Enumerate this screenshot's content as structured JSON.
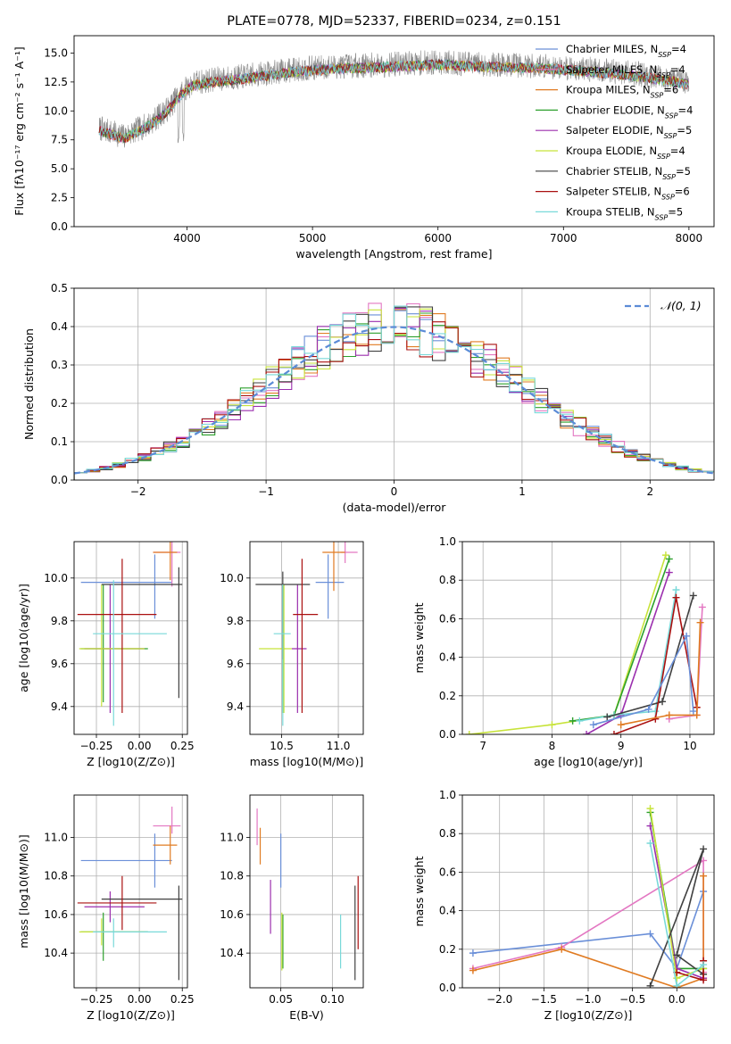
{
  "chart_data": [
    {
      "id": "spectrum",
      "type": "line",
      "title": "PLATE=0778, MJD=52337, FIBERID=0234, z=0.151",
      "xlabel": "wavelength [Angstrom, rest frame]",
      "ylabel": "Flux [fλ10⁻¹⁷ erg cm⁻² s⁻¹ A⁻¹]",
      "xlim": [
        3100,
        8200
      ],
      "ylim": [
        0,
        16.5
      ],
      "xticks": [
        4000,
        5000,
        6000,
        7000,
        8000
      ],
      "yticks": [
        0.0,
        2.5,
        5.0,
        7.5,
        10.0,
        12.5,
        15.0
      ],
      "legend_position": "right",
      "legend": [
        {
          "label": "Chabrier MILES, N_SSP=4",
          "color": "#6a8fd8"
        },
        {
          "label": "Salpeter MILES, N_SSP=4",
          "color": "#e377c2"
        },
        {
          "label": "Kroupa MILES, N_SSP=6",
          "color": "#e07b22"
        },
        {
          "label": "Chabrier ELODIE, N_SSP=4",
          "color": "#2ca02c"
        },
        {
          "label": "Salpeter ELODIE, N_SSP=5",
          "color": "#9b2fae"
        },
        {
          "label": "Kroupa ELODIE, N_SSP=4",
          "color": "#c7e33a"
        },
        {
          "label": "Chabrier STELIB, N_SSP=5",
          "color": "#404040"
        },
        {
          "label": "Salpeter STELIB, N_SSP=6",
          "color": "#aa1010"
        },
        {
          "label": "Kroupa STELIB, N_SSP=5",
          "color": "#79d9d9"
        }
      ],
      "data_trend": {
        "x": [
          3300,
          3500,
          3700,
          3850,
          3950,
          4050,
          4200,
          4400,
          4600,
          4800,
          5000,
          5300,
          5600,
          6000,
          6400,
          6800,
          7200,
          7600,
          8000
        ],
        "y": [
          8.5,
          7.8,
          8.9,
          10.2,
          11.6,
          12.4,
          12.7,
          12.9,
          13.2,
          13.5,
          13.7,
          13.9,
          14.0,
          14.2,
          14.0,
          13.9,
          13.6,
          13.2,
          12.5
        ]
      }
    },
    {
      "id": "residuals",
      "type": "step",
      "xlabel": "(data-model)/error",
      "ylabel": "Normed distribution",
      "xlim": [
        -2.5,
        2.5
      ],
      "ylim": [
        0,
        0.5
      ],
      "xticks": [
        -2,
        -1,
        0,
        1,
        2
      ],
      "yticks": [
        0.0,
        0.1,
        0.2,
        0.3,
        0.4,
        0.5
      ],
      "legend": [
        {
          "label": "𝒩(0, 1)",
          "color": "#5b8bd6"
        }
      ],
      "bins": 50
    },
    {
      "id": "age_vs_Z",
      "type": "errorbar",
      "xlabel": "Z [log10(Z/Z⊙)]",
      "ylabel": "age  [log10(age/yr)]",
      "xlim": [
        -0.38,
        0.28
      ],
      "ylim": [
        9.27,
        10.17
      ],
      "xticks": [
        -0.25,
        0.0,
        0.25
      ],
      "yticks": [
        9.4,
        9.6,
        9.8,
        10.0
      ],
      "points": [
        {
          "color": "#6a8fd8",
          "x": 0.09,
          "xerr": [
            0.43,
            0.1
          ],
          "y": 9.98,
          "yerr": [
            0.17,
            0.13
          ]
        },
        {
          "color": "#e377c2",
          "x": 0.19,
          "xerr": [
            0.11,
            0.05
          ],
          "y": 10.12,
          "yerr": [
            0.16,
            0.05
          ]
        },
        {
          "color": "#e07b22",
          "x": 0.18,
          "xerr": [
            0.1,
            0.04
          ],
          "y": 10.12,
          "yerr": [
            0.13,
            0.05
          ]
        },
        {
          "color": "#2ca02c",
          "x": -0.21,
          "xerr": [
            0.13,
            0.26
          ],
          "y": 9.67,
          "yerr": [
            0.25,
            0.3
          ]
        },
        {
          "color": "#9b2fae",
          "x": -0.17,
          "xerr": [
            0.15,
            0.2
          ],
          "y": 9.67,
          "yerr": [
            0.3,
            0.3
          ]
        },
        {
          "color": "#c7e33a",
          "x": -0.22,
          "xerr": [
            0.13,
            0.25
          ],
          "y": 9.67,
          "yerr": [
            0.27,
            0.3
          ]
        },
        {
          "color": "#404040",
          "x": 0.23,
          "xerr": [
            0.45,
            0.02
          ],
          "y": 9.97,
          "yerr": [
            0.53,
            0.08
          ]
        },
        {
          "color": "#aa1010",
          "x": -0.1,
          "xerr": [
            0.26,
            0.2
          ],
          "y": 9.83,
          "yerr": [
            0.46,
            0.26
          ]
        },
        {
          "color": "#79d9d9",
          "x": -0.15,
          "xerr": [
            0.12,
            0.31
          ],
          "y": 9.74,
          "yerr": [
            0.43,
            0.25
          ]
        }
      ]
    },
    {
      "id": "age_vs_mass",
      "type": "errorbar",
      "xlabel": "mass [log10(M/M⊙)]",
      "ylabel": "",
      "xlim": [
        10.22,
        11.22
      ],
      "ylim": [
        9.27,
        10.17
      ],
      "xticks": [
        10.5,
        11.0
      ],
      "yticks": [
        9.4,
        9.6,
        9.8,
        10.0
      ],
      "points": [
        {
          "color": "#6a8fd8",
          "x": 10.91,
          "xerr": [
            0.11,
            0.14
          ],
          "y": 9.98,
          "yerr": [
            0.17,
            0.13
          ]
        },
        {
          "color": "#e377c2",
          "x": 11.06,
          "xerr": [
            0.04,
            0.11
          ],
          "y": 10.12,
          "yerr": [
            0.05,
            0.05
          ]
        },
        {
          "color": "#e07b22",
          "x": 10.96,
          "xerr": [
            0.1,
            0.1
          ],
          "y": 10.12,
          "yerr": [
            0.18,
            0.05
          ]
        },
        {
          "color": "#2ca02c",
          "x": 10.51,
          "xerr": [
            0.02,
            0.02
          ],
          "y": 9.67,
          "yerr": [
            0.3,
            0.3
          ]
        },
        {
          "color": "#9b2fae",
          "x": 10.64,
          "xerr": [
            0.05,
            0.08
          ],
          "y": 9.67,
          "yerr": [
            0.3,
            0.3
          ]
        },
        {
          "color": "#c7e33a",
          "x": 10.52,
          "xerr": [
            0.22,
            0.07
          ],
          "y": 9.67,
          "yerr": [
            0.3,
            0.3
          ]
        },
        {
          "color": "#404040",
          "x": 10.51,
          "xerr": [
            0.24,
            0.24
          ],
          "y": 9.97,
          "yerr": [
            0.35,
            0.06
          ]
        },
        {
          "color": "#aa1010",
          "x": 10.68,
          "xerr": [
            0.08,
            0.14
          ],
          "y": 9.83,
          "yerr": [
            0.46,
            0.26
          ]
        },
        {
          "color": "#79d9d9",
          "x": 10.51,
          "xerr": [
            0.08,
            0.07
          ],
          "y": 9.74,
          "yerr": [
            0.43,
            0.23
          ]
        }
      ]
    },
    {
      "id": "weight_vs_age",
      "type": "line",
      "xlabel": "age  [log10(age/yr)]",
      "ylabel": "mass weight",
      "xlim": [
        6.7,
        10.35
      ],
      "ylim": [
        0,
        1.0
      ],
      "xticks": [
        7,
        8,
        9,
        10
      ],
      "yticks": [
        0.0,
        0.2,
        0.4,
        0.6,
        0.8,
        1.0
      ],
      "series": [
        {
          "color": "#c7e33a",
          "x": [
            6.8,
            8.0,
            8.9,
            9.65
          ],
          "y": [
            0.0,
            0.05,
            0.1,
            0.93
          ]
        },
        {
          "color": "#2ca02c",
          "x": [
            8.3,
            8.9,
            9.7
          ],
          "y": [
            0.07,
            0.1,
            0.91
          ]
        },
        {
          "color": "#9b2fae",
          "x": [
            8.5,
            9.0,
            9.7
          ],
          "y": [
            0.0,
            0.1,
            0.84
          ]
        },
        {
          "color": "#79d9d9",
          "x": [
            8.4,
            8.9,
            9.5,
            9.8
          ],
          "y": [
            0.07,
            0.1,
            0.12,
            0.75
          ]
        },
        {
          "color": "#404040",
          "x": [
            8.8,
            9.6,
            10.05
          ],
          "y": [
            0.09,
            0.17,
            0.72
          ]
        },
        {
          "color": "#aa1010",
          "x": [
            8.9,
            9.5,
            9.8,
            10.1
          ],
          "y": [
            0.0,
            0.08,
            0.71,
            0.14
          ]
        },
        {
          "color": "#6a8fd8",
          "x": [
            8.6,
            9.4,
            9.95,
            10.05
          ],
          "y": [
            0.05,
            0.13,
            0.51,
            0.12
          ]
        },
        {
          "color": "#e377c2",
          "x": [
            9.7,
            10.1,
            10.18
          ],
          "y": [
            0.08,
            0.1,
            0.66
          ]
        },
        {
          "color": "#e07b22",
          "x": [
            9.0,
            9.7,
            10.1,
            10.15
          ],
          "y": [
            0.05,
            0.1,
            0.1,
            0.58
          ]
        }
      ]
    },
    {
      "id": "mass_vs_Z",
      "type": "errorbar",
      "xlabel": "Z [log10(Z/Z⊙)]",
      "ylabel": "mass [log10(M/M⊙)]",
      "xlim": [
        -0.38,
        0.28
      ],
      "ylim": [
        10.22,
        11.22
      ],
      "xticks": [
        -0.25,
        0.0,
        0.25
      ],
      "yticks": [
        10.4,
        10.6,
        10.8,
        11.0
      ],
      "points": [
        {
          "color": "#6a8fd8",
          "x": 0.09,
          "xerr": [
            0.43,
            0.1
          ],
          "y": 10.88,
          "yerr": [
            0.14,
            0.14
          ]
        },
        {
          "color": "#e377c2",
          "x": 0.19,
          "xerr": [
            0.11,
            0.05
          ],
          "y": 11.06,
          "yerr": [
            0.04,
            0.1
          ]
        },
        {
          "color": "#e07b22",
          "x": 0.18,
          "xerr": [
            0.1,
            0.04
          ],
          "y": 10.96,
          "yerr": [
            0.1,
            0.1
          ]
        },
        {
          "color": "#2ca02c",
          "x": -0.21,
          "xerr": [
            0.13,
            0.26
          ],
          "y": 10.51,
          "yerr": [
            0.15,
            0.1
          ]
        },
        {
          "color": "#9b2fae",
          "x": -0.17,
          "xerr": [
            0.15,
            0.2
          ],
          "y": 10.64,
          "yerr": [
            0.08,
            0.08
          ]
        },
        {
          "color": "#c7e33a",
          "x": -0.22,
          "xerr": [
            0.13,
            0.25
          ],
          "y": 10.51,
          "yerr": [
            0.07,
            0.07
          ]
        },
        {
          "color": "#404040",
          "x": 0.23,
          "xerr": [
            0.45,
            0.02
          ],
          "y": 10.68,
          "yerr": [
            0.42,
            0.07
          ]
        },
        {
          "color": "#aa1010",
          "x": -0.1,
          "xerr": [
            0.26,
            0.2
          ],
          "y": 10.66,
          "yerr": [
            0.14,
            0.14
          ]
        },
        {
          "color": "#79d9d9",
          "x": -0.15,
          "xerr": [
            0.12,
            0.31
          ],
          "y": 10.51,
          "yerr": [
            0.08,
            0.07
          ]
        }
      ]
    },
    {
      "id": "mass_vs_ebv",
      "type": "errorbar",
      "xlabel": "E(B-V)",
      "ylabel": "",
      "xlim": [
        0.02,
        0.13
      ],
      "ylim": [
        10.22,
        11.22
      ],
      "xticks": [
        0.05,
        0.1
      ],
      "yticks": [
        10.4,
        10.6,
        10.8,
        11.0
      ],
      "points": [
        {
          "color": "#6a8fd8",
          "x": 0.05,
          "y": 10.88,
          "yerr": [
            0.14,
            0.14
          ]
        },
        {
          "color": "#e377c2",
          "x": 0.027,
          "y": 11.06,
          "yerr": [
            0.1,
            0.09
          ]
        },
        {
          "color": "#e07b22",
          "x": 0.03,
          "y": 10.96,
          "yerr": [
            0.1,
            0.09
          ]
        },
        {
          "color": "#2ca02c",
          "x": 0.052,
          "y": 10.46,
          "yerr": [
            0.14,
            0.14
          ]
        },
        {
          "color": "#9b2fae",
          "x": 0.04,
          "y": 10.64,
          "yerr": [
            0.14,
            0.14
          ]
        },
        {
          "color": "#c7e33a",
          "x": 0.051,
          "y": 10.46,
          "yerr": [
            0.15,
            0.15
          ]
        },
        {
          "color": "#404040",
          "x": 0.122,
          "y": 10.51,
          "yerr": [
            0.25,
            0.24
          ]
        },
        {
          "color": "#aa1010",
          "x": 0.125,
          "y": 10.6,
          "yerr": [
            0.18,
            0.2
          ]
        },
        {
          "color": "#79d9d9",
          "x": 0.108,
          "y": 10.46,
          "yerr": [
            0.14,
            0.14
          ]
        }
      ]
    },
    {
      "id": "weight_vs_Z",
      "type": "line",
      "xlabel": "Z [log10(Z/Z⊙)]",
      "ylabel": "mass weight",
      "xlim": [
        -2.42,
        0.42
      ],
      "ylim": [
        0,
        1.0
      ],
      "xticks": [
        -2.0,
        -1.5,
        -1.0,
        -0.5,
        0.0
      ],
      "yticks": [
        0.0,
        0.2,
        0.4,
        0.6,
        0.8,
        1.0
      ],
      "series": [
        {
          "color": "#6a8fd8",
          "x": [
            -2.3,
            -0.3,
            0.0,
            0.3
          ],
          "y": [
            0.18,
            0.28,
            0.1,
            0.5
          ]
        },
        {
          "color": "#e377c2",
          "x": [
            -2.3,
            -1.3,
            0.3,
            0.3
          ],
          "y": [
            0.1,
            0.21,
            0.66,
            0.08
          ]
        },
        {
          "color": "#e07b22",
          "x": [
            -2.3,
            -1.3,
            0.0,
            0.3,
            0.3
          ],
          "y": [
            0.09,
            0.2,
            0.0,
            0.05,
            0.58
          ]
        },
        {
          "color": "#2ca02c",
          "x": [
            -0.3,
            0.0,
            0.3
          ],
          "y": [
            0.91,
            0.1,
            0.1
          ]
        },
        {
          "color": "#9b2fae",
          "x": [
            -0.3,
            0.0,
            0.3
          ],
          "y": [
            0.84,
            0.1,
            0.05
          ]
        },
        {
          "color": "#c7e33a",
          "x": [
            -0.3,
            0.0,
            0.3
          ],
          "y": [
            0.93,
            0.05,
            0.1
          ]
        },
        {
          "color": "#404040",
          "x": [
            -0.3,
            0.3,
            0.0,
            0.3
          ],
          "y": [
            0.01,
            0.72,
            0.17,
            0.07
          ]
        },
        {
          "color": "#aa1010",
          "x": [
            0.0,
            0.3,
            0.3
          ],
          "y": [
            0.08,
            0.04,
            0.14
          ]
        },
        {
          "color": "#79d9d9",
          "x": [
            -0.3,
            0.0,
            0.3
          ],
          "y": [
            0.75,
            0.01,
            0.12
          ]
        }
      ]
    }
  ]
}
